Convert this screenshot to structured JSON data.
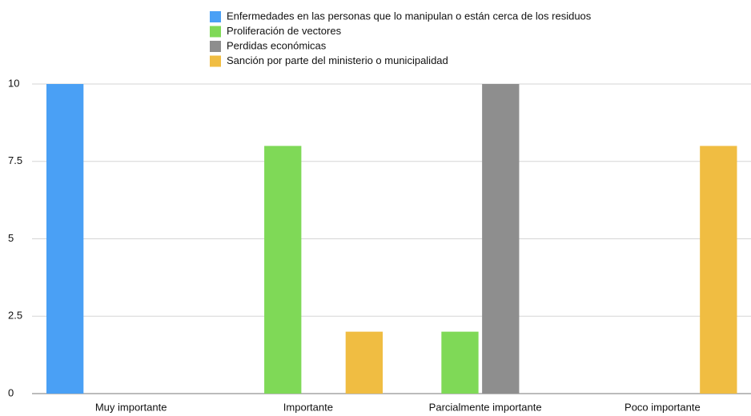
{
  "chart_data": {
    "type": "bar",
    "categories": [
      "Muy importante",
      "Importante",
      "Parcialmente importante",
      "Poco importante"
    ],
    "series": [
      {
        "name": "Enfermedades en las personas que lo manipulan o están cerca de los residuos",
        "color": "#4aa0f5",
        "values": [
          10,
          0,
          0,
          0
        ]
      },
      {
        "name": "Proliferación de vectores",
        "color": "#7fd957",
        "values": [
          0,
          8,
          2,
          0
        ]
      },
      {
        "name": "Perdidas económicas",
        "color": "#8e8e8e",
        "values": [
          0,
          0,
          10,
          0
        ]
      },
      {
        "name": "Sanción por parte del ministerio o municipalidad",
        "color": "#f0bd42",
        "values": [
          0,
          2,
          0,
          8
        ]
      }
    ],
    "ylim": [
      0,
      10
    ],
    "yticks": [
      0,
      2.5,
      5,
      7.5,
      10
    ],
    "grid": true,
    "legend": "top"
  }
}
